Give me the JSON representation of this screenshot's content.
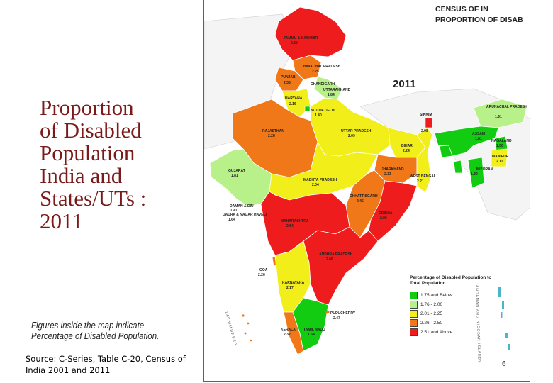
{
  "slide": {
    "title": "Proportion\nof Disabled\nPopulation\nIndia and\nStates/UTs :\n2011",
    "figure_note": "Figures inside the map indicate Percentage of Disabled Population.",
    "source": "Source: C-Series, Table C-20, Census of India 2001 and 2011",
    "page_number": "6"
  },
  "map": {
    "header_line1": "CENSUS OF IN",
    "header_line2": "PROPORTION OF DISAB",
    "year": "2011",
    "legend": {
      "title": "Percentage of Disabled Population to Total Population",
      "classes": [
        {
          "label": "1.75 and Below",
          "color": "#11cc11"
        },
        {
          "label": "1.76 - 2.00",
          "color": "#b8f08a"
        },
        {
          "label": "2.01 - 2.25",
          "color": "#f2ee1a"
        },
        {
          "label": "2.26 - 2.50",
          "color": "#f07818"
        },
        {
          "label": "2.51 and Above",
          "color": "#ee1c1c"
        }
      ]
    },
    "regions": [
      {
        "name": "JAMMU & KASHMIR",
        "value": "2.30"
      },
      {
        "name": "HIMACHAL PRADESH",
        "value": "2.25"
      },
      {
        "name": "PUNJAB",
        "value": "2.35"
      },
      {
        "name": "CHANDIGARH",
        "value": ""
      },
      {
        "name": "UTTARAKHAND",
        "value": "1.84"
      },
      {
        "name": "HARYANA",
        "value": "2.16"
      },
      {
        "name": "NCT OF DELHI",
        "value": "1.40"
      },
      {
        "name": "RAJASTHAN",
        "value": "2.28"
      },
      {
        "name": "UTTAR PRADESH",
        "value": "2.09"
      },
      {
        "name": "BIHAR",
        "value": "2.24"
      },
      {
        "name": "GUJARAT",
        "value": "1.81"
      },
      {
        "name": "MADHYA PRADESH",
        "value": "2.04"
      },
      {
        "name": "JHARKHAND",
        "value": "2.33"
      },
      {
        "name": "WEST BENGAL",
        "value": "2.21"
      },
      {
        "name": "CHHATTISGARH",
        "value": "2.45"
      },
      {
        "name": "ODISHA",
        "value": "2.96"
      },
      {
        "name": "DAMAN & DIU",
        "value": "0.90"
      },
      {
        "name": "DADRA & NAGAR HAVELI",
        "value": "1.64"
      },
      {
        "name": "MAHARASHTRA",
        "value": "2.64"
      },
      {
        "name": "ANDHRA PRADESH",
        "value": "2.66"
      },
      {
        "name": "GOA",
        "value": "2.26"
      },
      {
        "name": "KARNATAKA",
        "value": "2.17"
      },
      {
        "name": "PUDUCHERRY",
        "value": "2.47"
      },
      {
        "name": "TAMIL NADU",
        "value": "1.64"
      },
      {
        "name": "KERALA",
        "value": "2.32"
      },
      {
        "name": "ARUNACHAL PRADESH",
        "value": "1.91"
      },
      {
        "name": "ASSAM",
        "value": "1.61"
      },
      {
        "name": "NAGALAND",
        "value": "1.50"
      },
      {
        "name": "MANIPUR",
        "value": "2.11"
      },
      {
        "name": "MIZORAM",
        "value": "1.39"
      },
      {
        "name": "SIKKIM",
        "value": "2.98"
      }
    ],
    "side_labels": {
      "lakshadweep": "LAKSHADWEEP",
      "andaman": "ANDAMAN AND NICOBAR ISLANDS"
    }
  }
}
